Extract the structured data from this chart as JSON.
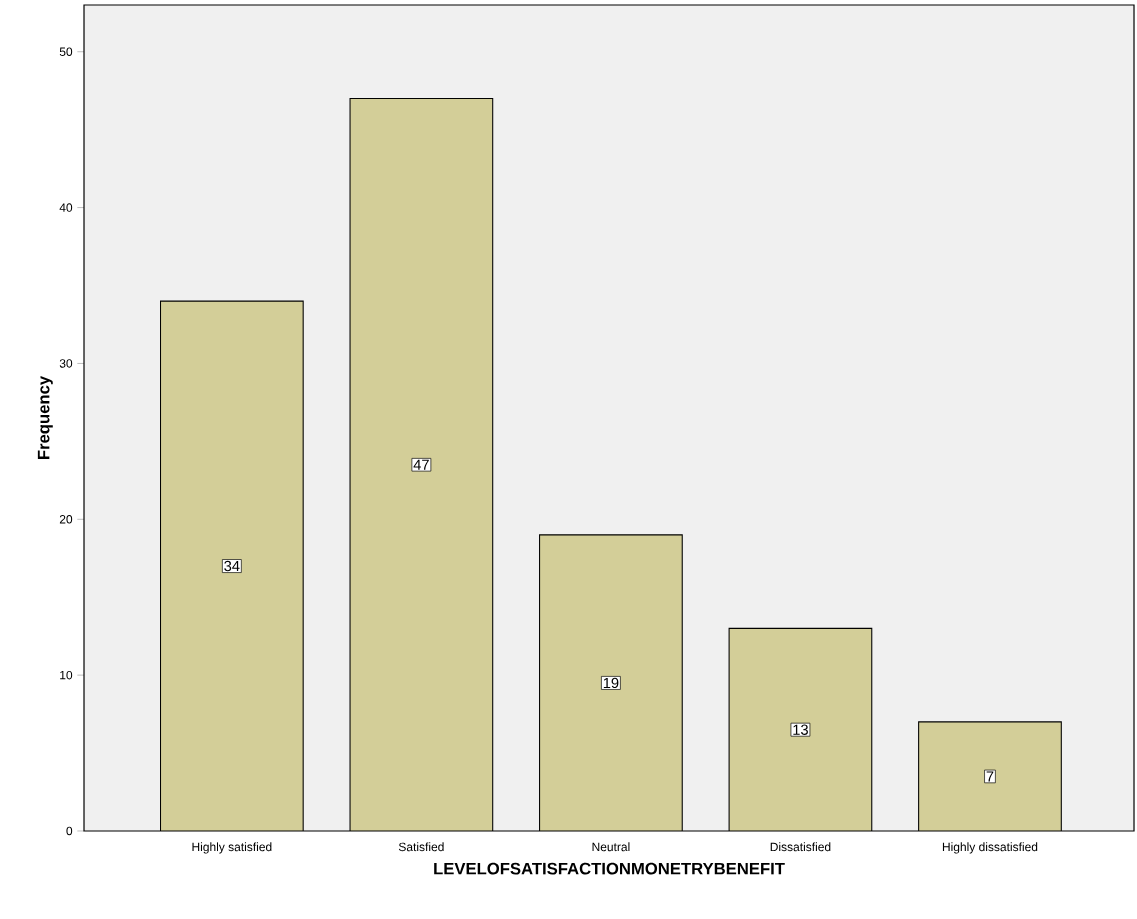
{
  "chart_data": {
    "type": "bar",
    "xlabel": "LEVELOFSATISFACTIONMONETRYBENEFIT",
    "ylabel": "Frequency",
    "categories": [
      "Highly satisfied",
      "Satisfied",
      "Neutral",
      "Dissatisfied",
      "Highly dissatisfied"
    ],
    "values": [
      34,
      47,
      19,
      13,
      7
    ],
    "color": "#d3ce98",
    "ylim": [
      0,
      53
    ],
    "yticks": [
      0,
      10,
      20,
      30,
      40,
      50
    ],
    "data_labels": true,
    "grid": false
  }
}
